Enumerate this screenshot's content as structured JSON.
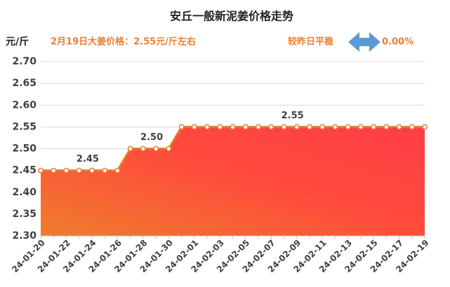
{
  "chart_data": {
    "type": "area",
    "title": "安丘一般新泥姜价格走势",
    "y_label": "元/斤",
    "subtitle": "2月19日大姜价格：2.55元/斤左右",
    "change_label": "较昨日平稳",
    "change_value": "0.00%",
    "categories": [
      "24-01-20",
      null,
      "24-01-22",
      null,
      "24-01-24",
      null,
      "24-01-26",
      null,
      "24-01-28",
      null,
      "24-01-30",
      null,
      "24-02-01",
      null,
      "24-02-03",
      null,
      "24-02-05",
      null,
      "24-02-07",
      null,
      "24-02-09",
      null,
      "24-02-11",
      null,
      "24-02-13",
      null,
      "24-02-15",
      null,
      "24-02-17",
      null,
      "24-02-19"
    ],
    "values": [
      2.45,
      2.45,
      2.45,
      2.45,
      2.45,
      2.45,
      2.45,
      2.5,
      2.5,
      2.5,
      2.5,
      2.55,
      2.55,
      2.55,
      2.55,
      2.55,
      2.55,
      2.55,
      2.55,
      2.55,
      2.55,
      2.55,
      2.55,
      2.55,
      2.55,
      2.55,
      2.55,
      2.55,
      2.55,
      2.55,
      2.55
    ],
    "value_labels": [
      null,
      null,
      null,
      null,
      "2.45",
      null,
      null,
      null,
      null,
      "2.50",
      null,
      null,
      null,
      null,
      null,
      null,
      null,
      null,
      null,
      null,
      "2.55",
      null,
      null,
      null,
      null,
      null,
      null,
      null,
      null,
      null,
      null
    ],
    "color": "#e8782a",
    "ylim": [
      2.3,
      2.7
    ],
    "yticks": [
      {
        "value": 2.3,
        "label": "2.30"
      },
      {
        "value": 2.35,
        "label": "2.35"
      },
      {
        "value": 2.4,
        "label": "2.40"
      },
      {
        "value": 2.45,
        "label": "2.45"
      },
      {
        "value": 2.5,
        "label": "2.50"
      },
      {
        "value": 2.55,
        "label": "2.55"
      },
      {
        "value": 2.6,
        "label": "2.60"
      },
      {
        "value": 2.65,
        "label": "2.65"
      },
      {
        "value": 2.7,
        "label": "2.70"
      }
    ],
    "grid": true
  }
}
